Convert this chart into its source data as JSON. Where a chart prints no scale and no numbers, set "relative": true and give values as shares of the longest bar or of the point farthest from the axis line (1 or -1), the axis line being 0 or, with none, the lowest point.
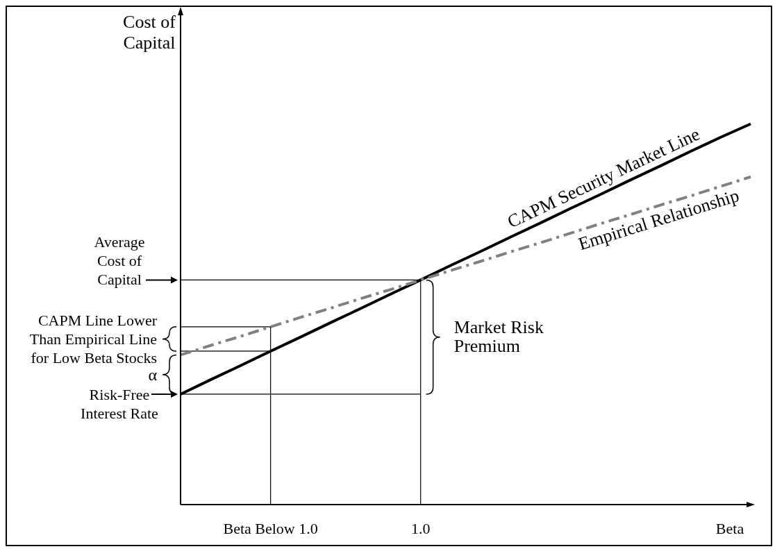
{
  "chart_data": {
    "type": "line",
    "relative": true,
    "xlabel": "Beta",
    "ylabel": "Cost of Capital",
    "marker": "none",
    "categories": [
      null,
      null,
      null,
      "Beta Below 1.0",
      null,
      null,
      null,
      null,
      "1.0",
      null,
      null,
      null,
      null,
      null,
      null,
      null,
      null,
      null,
      null,
      null
    ],
    "series": [
      {
        "name": "CAPM Security Market Line",
        "color": "#000000",
        "line_style": "solid",
        "values": [
          0.29,
          0.328,
          0.365,
          0.403,
          0.44,
          0.478,
          0.515,
          0.553,
          0.59,
          0.628,
          0.665,
          0.703,
          0.74,
          0.778,
          0.815,
          0.853,
          0.89,
          0.928,
          0.965,
          1.0
        ]
      },
      {
        "name": "Empirical Relationship",
        "color": "#808080",
        "line_style": "dashed",
        "values": [
          0.393,
          0.418,
          0.442,
          0.467,
          0.492,
          0.516,
          0.541,
          0.565,
          0.59,
          0.615,
          0.639,
          0.664,
          0.688,
          0.713,
          0.738,
          0.762,
          0.787,
          0.811,
          0.836,
          0.861
        ]
      }
    ],
    "ref_lines": [
      {
        "axis": "y",
        "value": 0.59,
        "label": "Average Cost of Capital",
        "color": "#000000"
      },
      {
        "axis": "y",
        "value": 0.29,
        "label": "Risk-Free Interest Rate",
        "color": "#000000"
      },
      {
        "axis": "y",
        "value": 0.467,
        "color": "#000000"
      },
      {
        "axis": "y",
        "value": 0.403,
        "color": "#000000"
      },
      {
        "axis": "x",
        "value": "Beta Below 1.0",
        "color": "#000000"
      },
      {
        "axis": "x",
        "value": "1.0",
        "color": "#000000"
      }
    ],
    "annotations": [
      "CAPM Line Lower Than Empirical Line for Low Beta Stocks",
      "α",
      "Market Risk Premium"
    ]
  }
}
